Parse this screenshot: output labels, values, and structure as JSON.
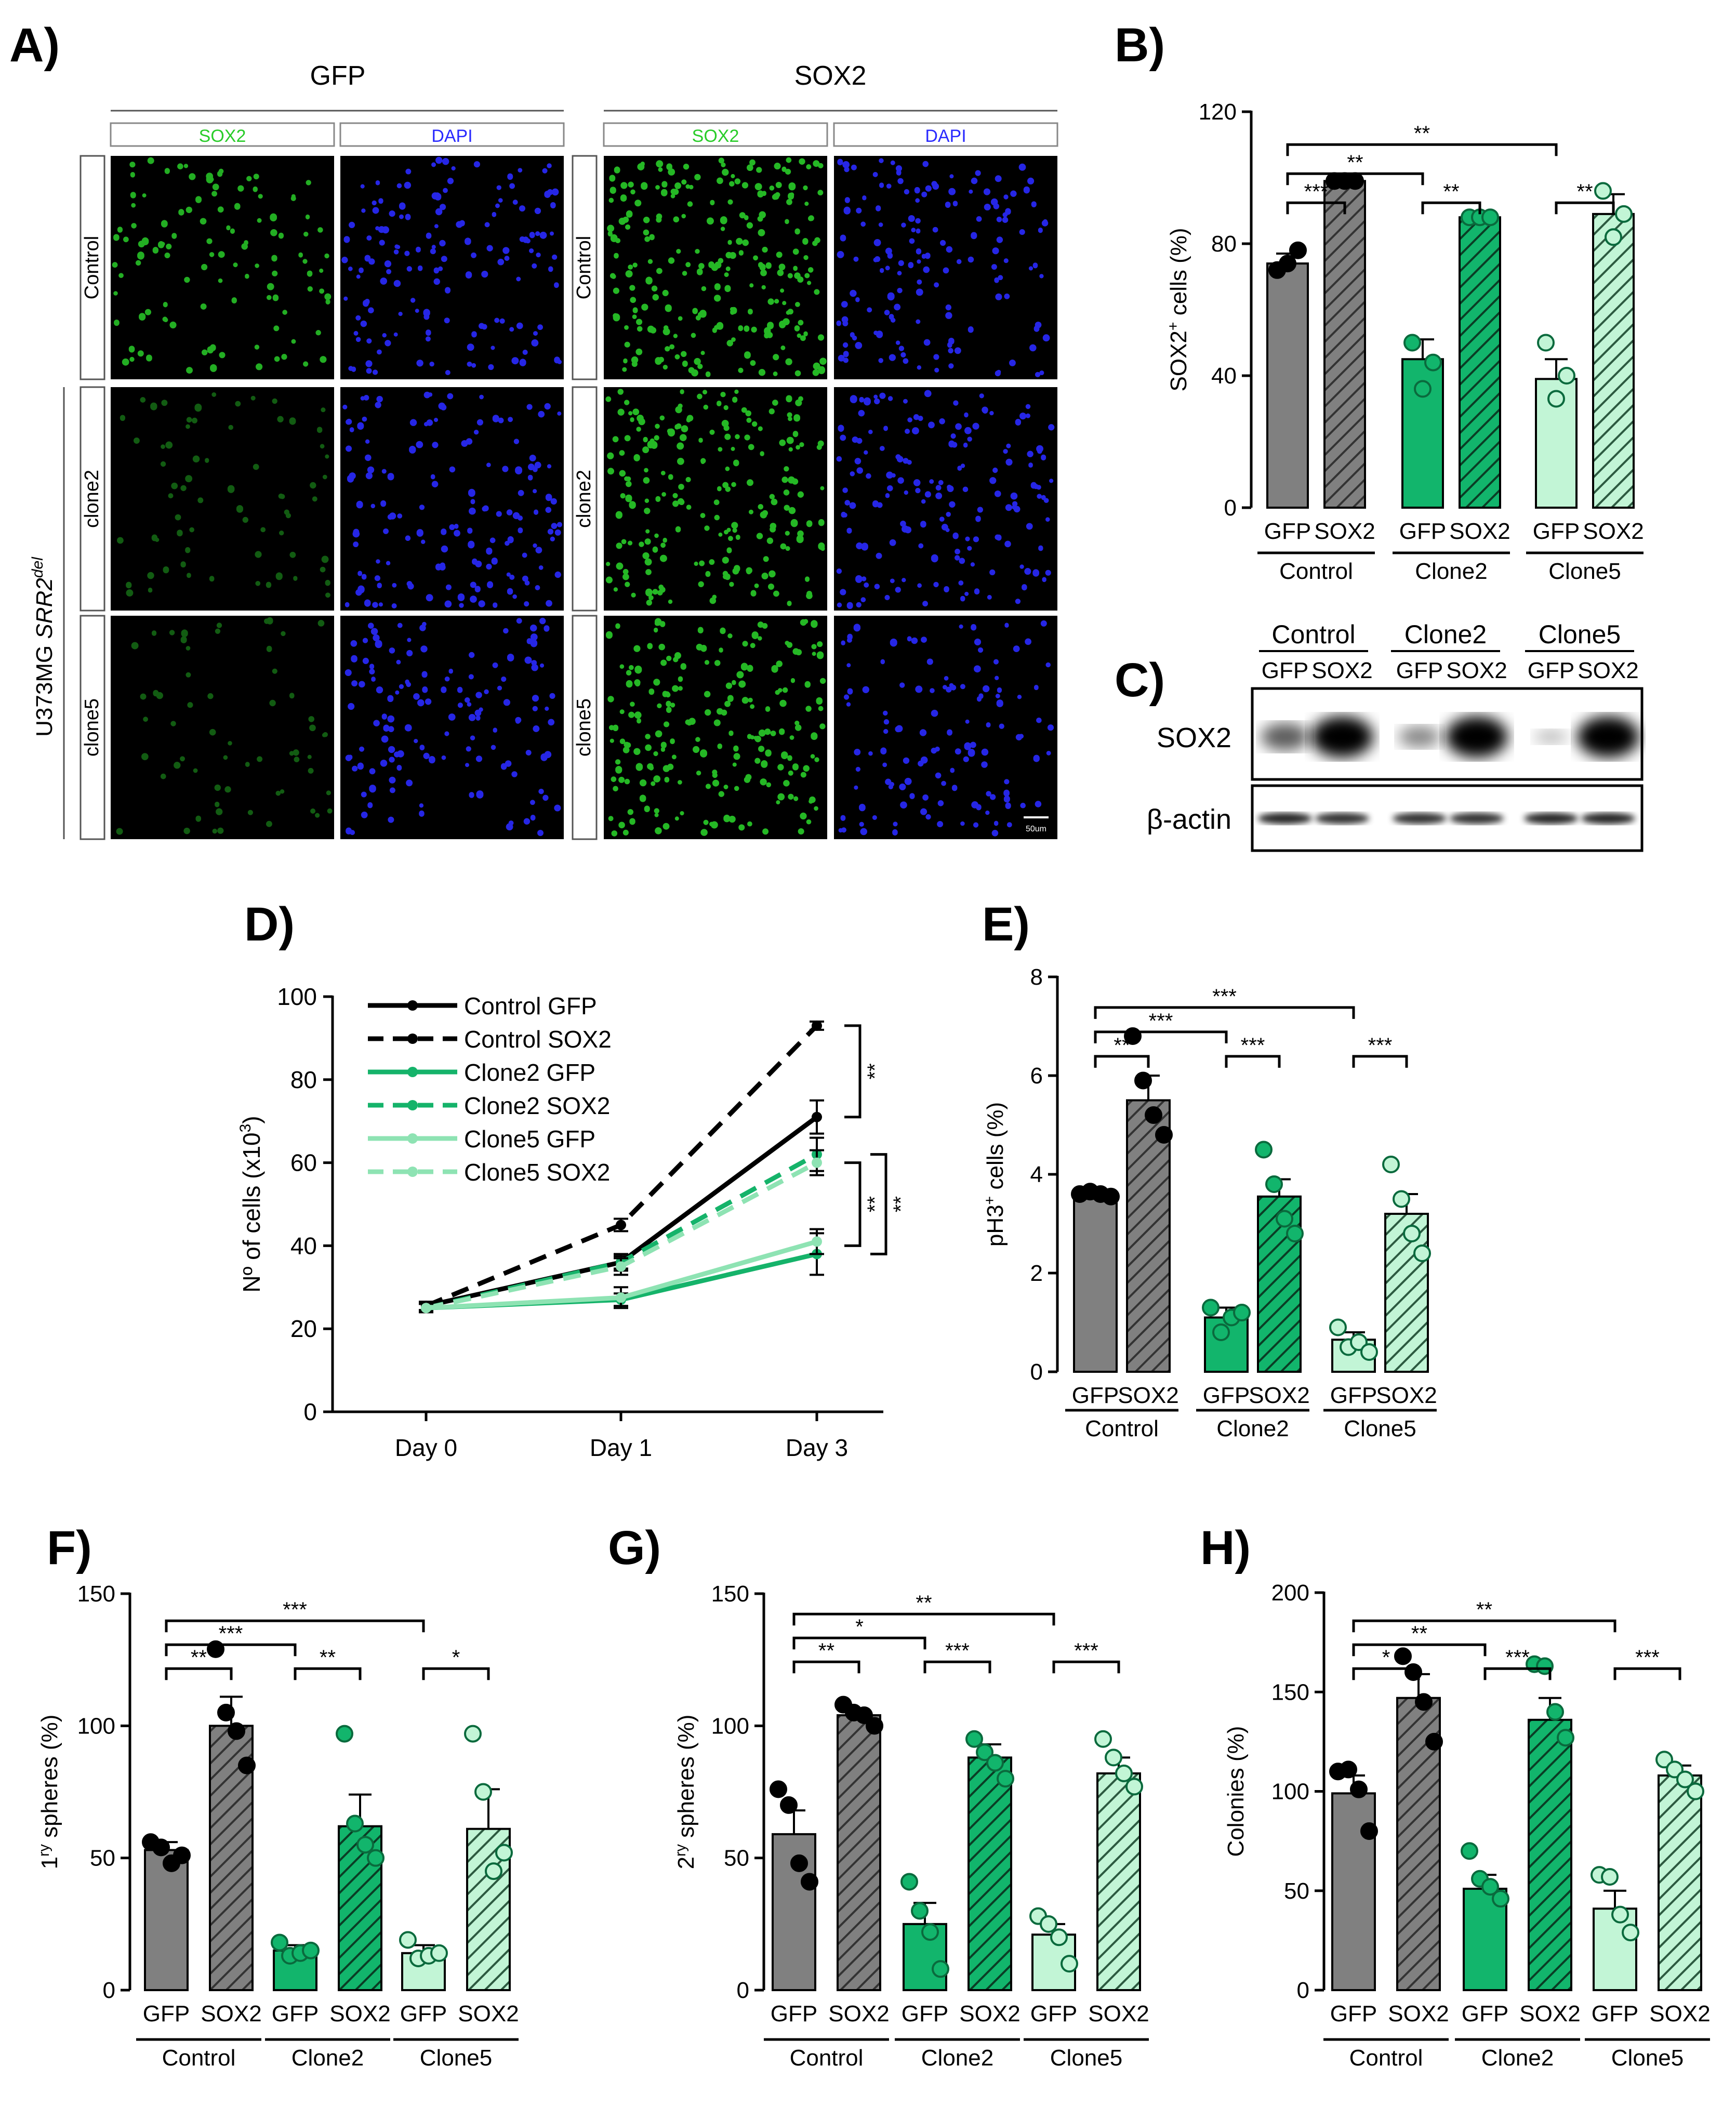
{
  "panels": {
    "A": {
      "letter": "A)",
      "groups": [
        "GFP",
        "SOX2"
      ],
      "channels": [
        "SOX2",
        "DAPI"
      ],
      "rows": [
        "Control",
        "clone2",
        "clone5"
      ],
      "side_label": "U373MG SRR2del",
      "side_label_main": "U373MG ",
      "side_label_gene": "SRR2",
      "side_label_sup": "del",
      "scale_bar": "50um",
      "colors": {
        "green": "#29cc29",
        "blue": "#2a2aff",
        "bg": "#000000"
      }
    },
    "C": {
      "letter": "C)",
      "groups": [
        "Control",
        "Clone2",
        "Clone5"
      ],
      "lanes": [
        "GFP",
        "SOX2",
        "GFP",
        "SOX2",
        "GFP",
        "SOX2"
      ],
      "rows": [
        "SOX2",
        "β-actin"
      ],
      "band_intensity_sox2": [
        0.55,
        1.0,
        0.35,
        1.0,
        0.1,
        1.0
      ],
      "band_intensity_actin": [
        0.85,
        0.8,
        0.8,
        0.8,
        0.85,
        0.85
      ]
    }
  },
  "chart_data": [
    {
      "id": "B",
      "letter": "B)",
      "type": "bar",
      "ylabel": "SOX2+ cells (%)",
      "ylabel_main": "SOX2",
      "ylabel_sup": "+",
      "ylabel_rest": " cells (%)",
      "ylim": [
        0,
        120
      ],
      "yticks": [
        "0",
        "40",
        "80",
        "120"
      ],
      "categories": [
        "GFP",
        "SOX2",
        "GFP",
        "SOX2",
        "GFP",
        "SOX2"
      ],
      "groups": [
        "Control",
        "Clone2",
        "Clone5"
      ],
      "values": [
        74,
        99,
        45,
        88,
        39,
        89
      ],
      "errors": [
        3,
        1,
        6,
        1,
        6,
        6
      ],
      "points": [
        [
          72,
          74,
          78
        ],
        [
          99,
          99,
          99
        ],
        [
          50,
          36,
          44
        ],
        [
          88,
          88,
          88
        ],
        [
          50,
          33,
          40
        ],
        [
          96,
          82,
          89
        ]
      ],
      "sig": [
        {
          "a": 0,
          "b": 1,
          "label": "***",
          "level": 0
        },
        {
          "a": 2,
          "b": 3,
          "label": "**",
          "level": 0
        },
        {
          "a": 4,
          "b": 5,
          "label": "**",
          "level": 0
        },
        {
          "a": 0,
          "b": 2,
          "label": "**",
          "level": 1
        },
        {
          "a": 0,
          "b": 4,
          "label": "**",
          "level": 2
        }
      ]
    },
    {
      "id": "E",
      "letter": "E)",
      "type": "bar",
      "ylabel": "pH3+ cells (%)",
      "ylabel_main": "pH3",
      "ylabel_sup": "+",
      "ylabel_rest": " cells (%)",
      "ylim": [
        0,
        8
      ],
      "yticks": [
        "0",
        "2",
        "4",
        "6",
        "8"
      ],
      "categories": [
        "GFP",
        "SOX2",
        "GFP",
        "SOX2",
        "GFP",
        "SOX2"
      ],
      "groups": [
        "Control",
        "Clone2",
        "Clone5"
      ],
      "values": [
        3.6,
        5.5,
        1.1,
        3.55,
        0.65,
        3.2
      ],
      "errors": [
        0.05,
        0.5,
        0.2,
        0.35,
        0.15,
        0.4
      ],
      "points": [
        [
          3.6,
          3.65,
          3.6,
          3.55
        ],
        [
          6.8,
          5.9,
          5.2,
          4.8
        ],
        [
          1.3,
          0.8,
          1.1,
          1.2
        ],
        [
          4.5,
          3.8,
          3.1,
          2.8
        ],
        [
          0.9,
          0.5,
          0.6,
          0.4
        ],
        [
          4.2,
          3.5,
          2.8,
          2.4
        ]
      ],
      "sig": [
        {
          "a": 0,
          "b": 1,
          "label": "**",
          "level": 0
        },
        {
          "a": 2,
          "b": 3,
          "label": "***",
          "level": 0
        },
        {
          "a": 4,
          "b": 5,
          "label": "***",
          "level": 0
        },
        {
          "a": 0,
          "b": 2,
          "label": "***",
          "level": 1
        },
        {
          "a": 0,
          "b": 4,
          "label": "***",
          "level": 2
        }
      ]
    },
    {
      "id": "F",
      "letter": "F)",
      "type": "bar",
      "ylabel": "1ry spheres (%)",
      "ylabel_main": "1",
      "ylabel_sup": "ry",
      "ylabel_rest": " spheres (%)",
      "ylim": [
        0,
        150
      ],
      "yticks": [
        "0",
        "50",
        "100",
        "150"
      ],
      "categories": [
        "GFP",
        "SOX2",
        "GFP",
        "SOX2",
        "GFP",
        "SOX2"
      ],
      "groups": [
        "Control",
        "Clone2",
        "Clone5"
      ],
      "values": [
        53,
        100,
        15,
        62,
        14,
        61
      ],
      "errors": [
        3,
        11,
        2,
        12,
        3,
        15
      ],
      "points": [
        [
          56,
          54,
          48,
          51
        ],
        [
          129,
          105,
          98,
          85
        ],
        [
          18,
          13,
          14,
          15
        ],
        [
          97,
          63,
          55,
          50
        ],
        [
          19,
          12,
          13,
          14
        ],
        [
          97,
          75,
          45,
          52
        ]
      ],
      "sig": [
        {
          "a": 0,
          "b": 1,
          "label": "**",
          "level": 0
        },
        {
          "a": 2,
          "b": 3,
          "label": "**",
          "level": 0
        },
        {
          "a": 4,
          "b": 5,
          "label": "*",
          "level": 0
        },
        {
          "a": 0,
          "b": 2,
          "label": "***",
          "level": 1
        },
        {
          "a": 0,
          "b": 4,
          "label": "***",
          "level": 2
        }
      ]
    },
    {
      "id": "G",
      "letter": "G)",
      "type": "bar",
      "ylabel": "2ry spheres (%)",
      "ylabel_main": "2",
      "ylabel_sup": "ry",
      "ylabel_rest": " spheres (%)",
      "ylim": [
        0,
        150
      ],
      "yticks": [
        "0",
        "50",
        "100",
        "150"
      ],
      "categories": [
        "GFP",
        "SOX2",
        "GFP",
        "SOX2",
        "GFP",
        "SOX2"
      ],
      "groups": [
        "Control",
        "Clone2",
        "Clone5"
      ],
      "values": [
        59,
        104,
        25,
        88,
        21,
        82
      ],
      "errors": [
        9,
        2,
        8,
        5,
        4,
        6
      ],
      "points": [
        [
          76,
          70,
          48,
          41
        ],
        [
          108,
          105,
          104,
          100
        ],
        [
          41,
          30,
          22,
          8
        ],
        [
          95,
          90,
          86,
          80
        ],
        [
          28,
          25,
          20,
          10
        ],
        [
          95,
          88,
          82,
          77
        ]
      ],
      "sig": [
        {
          "a": 0,
          "b": 1,
          "label": "**",
          "level": 0
        },
        {
          "a": 2,
          "b": 3,
          "label": "***",
          "level": 0
        },
        {
          "a": 4,
          "b": 5,
          "label": "***",
          "level": 0
        },
        {
          "a": 0,
          "b": 2,
          "label": "*",
          "level": 1
        },
        {
          "a": 0,
          "b": 4,
          "label": "**",
          "level": 2
        }
      ]
    },
    {
      "id": "H",
      "letter": "H)",
      "type": "bar",
      "ylabel": "Colonies (%)",
      "ylabel_main": "Colonies (%)",
      "ylabel_sup": "",
      "ylabel_rest": "",
      "ylim": [
        0,
        200
      ],
      "yticks": [
        "0",
        "50",
        "100",
        "150",
        "200"
      ],
      "categories": [
        "GFP",
        "SOX2",
        "GFP",
        "SOX2",
        "GFP",
        "SOX2"
      ],
      "groups": [
        "Control",
        "Clone2",
        "Clone5"
      ],
      "values": [
        99,
        147,
        51,
        136,
        41,
        108
      ],
      "errors": [
        9,
        12,
        7,
        11,
        9,
        5
      ],
      "points": [
        [
          110,
          111,
          101,
          80
        ],
        [
          168,
          160,
          145,
          125
        ],
        [
          70,
          56,
          52,
          46
        ],
        [
          164,
          163,
          140,
          127
        ],
        [
          58,
          57,
          38,
          29
        ],
        [
          116,
          111,
          106,
          100
        ]
      ],
      "sig": [
        {
          "a": 0,
          "b": 1,
          "label": "*",
          "level": 0
        },
        {
          "a": 2,
          "b": 3,
          "label": "***",
          "level": 0
        },
        {
          "a": 4,
          "b": 5,
          "label": "***",
          "level": 0
        },
        {
          "a": 0,
          "b": 2,
          "label": "**",
          "level": 1
        },
        {
          "a": 0,
          "b": 4,
          "label": "**",
          "level": 2
        }
      ]
    },
    {
      "id": "D",
      "letter": "D)",
      "type": "line",
      "ylabel": "Nº of cells (x103)",
      "ylabel_main": "Nº of cells (x10",
      "ylabel_sup": "3",
      "ylabel_rest": ")",
      "ylim": [
        0,
        100
      ],
      "yticks": [
        "0",
        "20",
        "40",
        "60",
        "80",
        "100"
      ],
      "x": [
        "Day 0",
        "Day 1",
        "Day 3"
      ],
      "series": [
        {
          "name": "Control GFP",
          "color": "#000000",
          "dash": false,
          "values": [
            25.5,
            36,
            71
          ],
          "errors": [
            1,
            1.5,
            4
          ]
        },
        {
          "name": "Control SOX2",
          "color": "#000000",
          "dash": true,
          "values": [
            25.5,
            45,
            93
          ],
          "errors": [
            1,
            1.5,
            1
          ]
        },
        {
          "name": "Clone2 GFP",
          "color": "#15b36a",
          "dash": false,
          "values": [
            25,
            27,
            38
          ],
          "errors": [
            1,
            1.5,
            5
          ]
        },
        {
          "name": "Clone2 SOX2",
          "color": "#15b36a",
          "dash": true,
          "values": [
            25,
            36,
            62
          ],
          "errors": [
            1,
            2,
            4
          ]
        },
        {
          "name": "Clone5 GFP",
          "color": "#8ee3b3",
          "dash": false,
          "values": [
            25,
            27.5,
            41
          ],
          "errors": [
            1,
            2.5,
            3
          ]
        },
        {
          "name": "Clone5 SOX2",
          "color": "#8ee3b3",
          "dash": true,
          "values": [
            25,
            35,
            60
          ],
          "errors": [
            1,
            2,
            3
          ]
        }
      ],
      "sig": [
        "**",
        "**",
        "**"
      ]
    }
  ],
  "colors": {
    "control": "#808080",
    "clone2": "#12b56c",
    "clone5": "#c2f5d6",
    "point_control": "#000000",
    "point_clone2": "#12b56c",
    "point_clone5": "#c2f5d6"
  }
}
